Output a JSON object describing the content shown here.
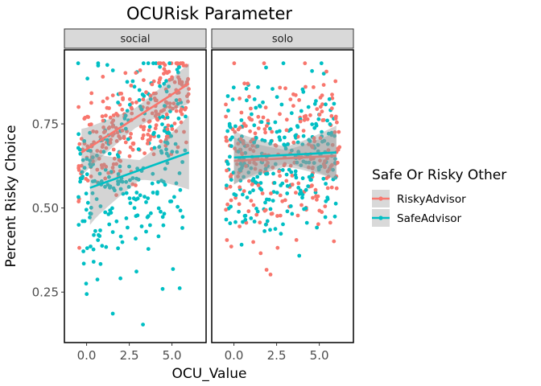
{
  "chart_data": {
    "type": "scatter",
    "title": "OCURisk Parameter",
    "xlabel": "OCU_Value",
    "ylabel": "Percent Risky Choice",
    "xlim": [
      -1.3,
      7.0
    ],
    "ylim": [
      0.1,
      0.97
    ],
    "x_ticks": [
      0.0,
      2.5,
      5.0
    ],
    "x_tick_labels": [
      "0.0",
      "2.5",
      "5.0"
    ],
    "y_ticks": [
      0.25,
      0.5,
      0.75
    ],
    "y_tick_labels": [
      "0.25",
      "0.50",
      "0.75"
    ],
    "grid": false,
    "legend": {
      "title": "Safe Or Risky Other",
      "placement": "right",
      "entries": [
        "RiskyAdvisor",
        "SafeAdvisor"
      ]
    },
    "colors": {
      "RiskyAdvisor": "#F8766D",
      "SafeAdvisor": "#00BFC4",
      "ribbon": "#999999"
    },
    "panels": [
      {
        "label": "social",
        "series": [
          {
            "name": "RiskyAdvisor",
            "x_range": [
              -0.5,
              6.0
            ],
            "y_center": [
              0.64,
              0.87
            ],
            "y_spread": 0.075,
            "trend": {
              "x": [
                -0.3,
                6.0
              ],
              "y": [
                0.665,
                0.87
              ]
            },
            "ribbon_halfwidth": [
              0.07,
              0.03,
              0.06
            ]
          },
          {
            "name": "SafeAdvisor",
            "x_range": [
              -0.5,
              5.8
            ],
            "y_center": [
              0.52,
              0.68
            ],
            "y_spread": 0.16,
            "trend": {
              "x": [
                0.2,
                6.0
              ],
              "y": [
                0.56,
                0.665
              ]
            },
            "ribbon_halfwidth": [
              0.11,
              0.03,
              0.11
            ]
          }
        ]
      },
      {
        "label": "solo",
        "series": [
          {
            "name": "RiskyAdvisor",
            "x_range": [
              -0.5,
              6.2
            ],
            "y_center": [
              0.64,
              0.66
            ],
            "y_spread": 0.11,
            "trend": {
              "x": [
                0.0,
                6.0
              ],
              "y": [
                0.64,
                0.655
              ]
            },
            "ribbon_halfwidth": [
              0.07,
              0.025,
              0.07
            ]
          },
          {
            "name": "SafeAdvisor",
            "x_range": [
              -0.5,
              6.0
            ],
            "y_center": [
              0.63,
              0.66
            ],
            "y_spread": 0.11,
            "trend": {
              "x": [
                0.0,
                6.0
              ],
              "y": [
                0.65,
                0.665
              ]
            },
            "ribbon_halfwidth": [
              0.08,
              0.025,
              0.08
            ]
          }
        ]
      }
    ]
  }
}
